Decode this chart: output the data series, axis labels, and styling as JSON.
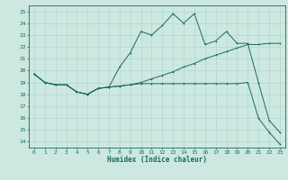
{
  "title": "",
  "xlabel": "Humidex (Indice chaleur)",
  "bg_color": "#cce8e0",
  "line_color": "#1a6b5a",
  "grid_color": "#aad4cc",
  "xlim": [
    -0.5,
    23.5
  ],
  "ylim": [
    13.5,
    25.5
  ],
  "xticks": [
    0,
    1,
    2,
    3,
    4,
    5,
    6,
    7,
    8,
    9,
    10,
    11,
    12,
    13,
    14,
    15,
    16,
    17,
    18,
    19,
    20,
    21,
    22,
    23
  ],
  "yticks": [
    14,
    15,
    16,
    17,
    18,
    19,
    20,
    21,
    22,
    23,
    24,
    25
  ],
  "line1_x": [
    0,
    1,
    2,
    3,
    4,
    5,
    6,
    7,
    8,
    9,
    10,
    11,
    12,
    13,
    14,
    15,
    16,
    17,
    18,
    19,
    20,
    21,
    22,
    23
  ],
  "line1_y": [
    19.7,
    19.0,
    18.8,
    18.8,
    18.2,
    18.0,
    18.5,
    18.6,
    20.3,
    21.5,
    23.3,
    23.0,
    23.8,
    24.8,
    24.0,
    24.8,
    22.2,
    22.5,
    23.3,
    22.3,
    22.3,
    19.0,
    15.8,
    14.8
  ],
  "line2_x": [
    0,
    1,
    2,
    3,
    4,
    5,
    6,
    7,
    8,
    9,
    10,
    11,
    12,
    13,
    14,
    15,
    16,
    17,
    18,
    19,
    20,
    21,
    22,
    23
  ],
  "line2_y": [
    19.7,
    19.0,
    18.8,
    18.8,
    18.2,
    18.0,
    18.5,
    18.6,
    18.7,
    18.8,
    19.0,
    19.3,
    19.6,
    19.9,
    20.3,
    20.6,
    21.0,
    21.3,
    21.6,
    21.9,
    22.2,
    22.2,
    22.3,
    22.3
  ],
  "line3_x": [
    0,
    1,
    2,
    3,
    4,
    5,
    6,
    7,
    8,
    9,
    10,
    11,
    12,
    13,
    14,
    15,
    16,
    17,
    18,
    19,
    20,
    21,
    22,
    23
  ],
  "line3_y": [
    19.7,
    19.0,
    18.8,
    18.8,
    18.2,
    18.0,
    18.5,
    18.6,
    18.7,
    18.8,
    18.9,
    18.9,
    18.9,
    18.9,
    18.9,
    18.9,
    18.9,
    18.9,
    18.9,
    18.9,
    19.0,
    16.0,
    14.8,
    13.8
  ],
  "tick_fontsize": 4.5,
  "xlabel_fontsize": 5.5,
  "marker_size": 2.0,
  "line_width": 0.7
}
